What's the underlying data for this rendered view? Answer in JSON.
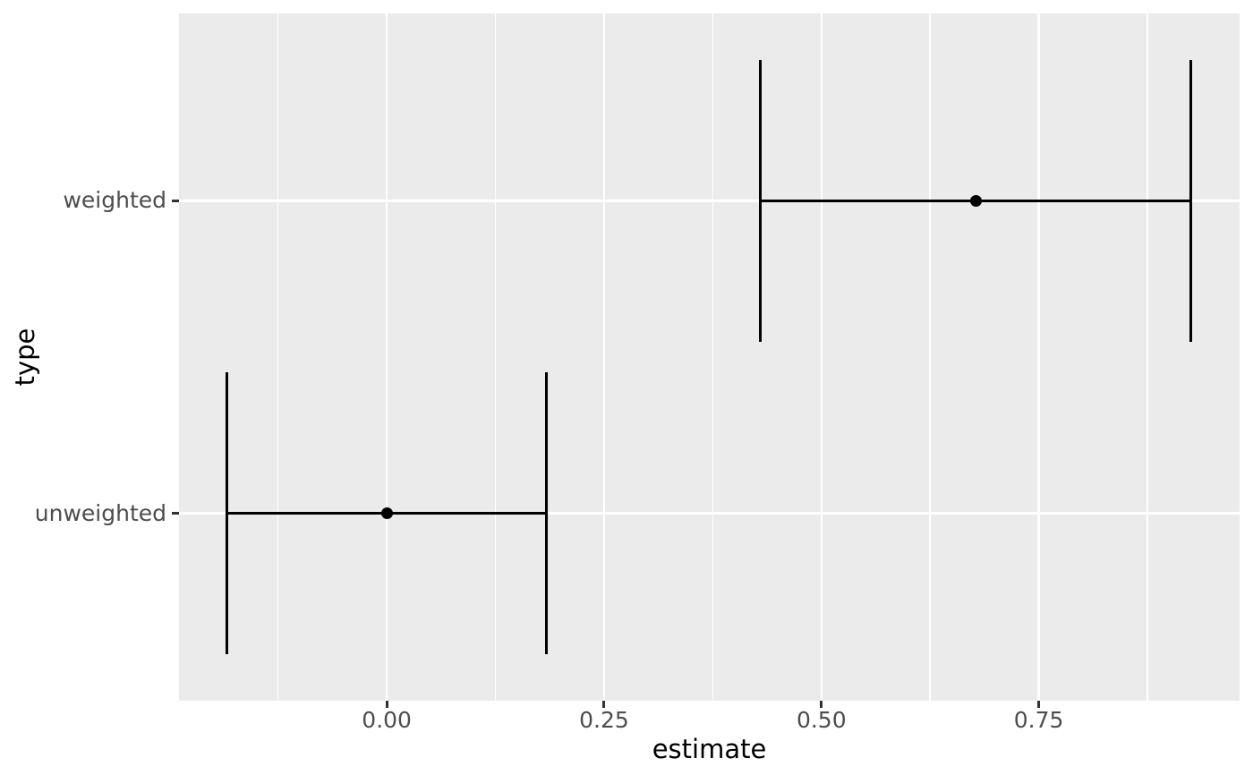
{
  "figure": {
    "background": "#FFFFFF",
    "panel_background": "#EBEBEB",
    "grid_color": "#FFFFFF",
    "data_color": "#000000",
    "tick_mark_color": "#333333",
    "tick_label_color": "#4D4D4D",
    "axis_title_color": "#000000"
  },
  "chart_data": {
    "type": "scatter",
    "subtype": "horizontal-errorbar",
    "title": "",
    "xlabel": "estimate",
    "ylabel": "type",
    "x_domain": [
      -0.239,
      0.981
    ],
    "x_ticks": [
      {
        "value": 0.0,
        "label": "0.00"
      },
      {
        "value": 0.25,
        "label": "0.25"
      },
      {
        "value": 0.5,
        "label": "0.50"
      },
      {
        "value": 0.75,
        "label": "0.75"
      }
    ],
    "x_minor_gridlines": [
      -0.125,
      0.125,
      0.375,
      0.625,
      0.875
    ],
    "y_domain": [
      0.4,
      2.6
    ],
    "categories": [
      {
        "label": "unweighted",
        "position": 1
      },
      {
        "label": "weighted",
        "position": 2
      }
    ],
    "series": [
      {
        "name": "unweighted",
        "y_position": 1,
        "estimate": 0.0,
        "ci_low": -0.184,
        "ci_high": 0.184
      },
      {
        "name": "weighted",
        "y_position": 2,
        "estimate": 0.678,
        "ci_low": 0.43,
        "ci_high": 0.925
      }
    ],
    "errorbar_cap_height_units": 0.9,
    "grid": "white major and minor vertical, white major horizontal",
    "legend": "none"
  }
}
